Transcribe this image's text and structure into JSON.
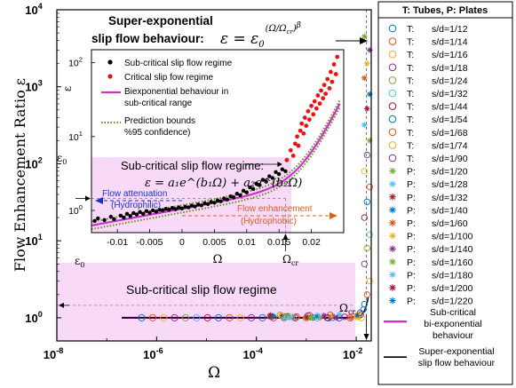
{
  "chart_data": [
    {
      "type": "scatter",
      "xlabel": "Ω",
      "ylabel": "Flow Enhancement Ratio ε",
      "xscale": "log",
      "yscale": "log",
      "xlim": [
        1e-08,
        0.02
      ],
      "ylim": [
        0.5,
        10000
      ],
      "xticks": [
        {
          "v": 1e-08,
          "base": "10",
          "exp": "-8"
        },
        {
          "v": 1e-06,
          "base": "10",
          "exp": "-6"
        },
        {
          "v": 0.0001,
          "base": "10",
          "exp": "-4"
        },
        {
          "v": 0.01,
          "base": "10",
          "exp": "-2"
        }
      ],
      "yticks": [
        {
          "v": 1,
          "base": "10",
          "exp": "0"
        },
        {
          "v": 10,
          "base": "10",
          "exp": "1"
        },
        {
          "v": 100,
          "base": "10",
          "exp": "2"
        },
        {
          "v": 1000,
          "base": "10",
          "exp": "3"
        },
        {
          "v": 10000,
          "base": "10",
          "exp": "4"
        }
      ],
      "region_label": "Sub-critical slip flow regime",
      "eps0_label": "ε",
      "eps0_sub": "0",
      "omega_cr_label": "Ω",
      "omega_cr_sub": "cr",
      "headline": {
        "line1": "Super-exponential",
        "line2": "slip flow behaviour:",
        "formula": "ε = ε",
        "formula_sub": "0",
        "formula_exp": "(Ω/Ω",
        "formula_exp_sub": "cr",
        "formula_exp_tail": ")",
        "formula_beta": "β"
      },
      "series": [
        {
          "name": "T: s/d=1/12",
          "marker": "o",
          "color": "#0072BD"
        },
        {
          "name": "T: s/d=1/14",
          "marker": "o",
          "color": "#D95319"
        },
        {
          "name": "T: s/d=1/16",
          "marker": "o",
          "color": "#EDB120"
        },
        {
          "name": "T: s/d=1/18",
          "marker": "o",
          "color": "#7E2F8E"
        },
        {
          "name": "T: s/d=1/24",
          "marker": "o",
          "color": "#77AC30"
        },
        {
          "name": "T: s/d=1/32",
          "marker": "o",
          "color": "#4DBEEE"
        },
        {
          "name": "T: s/d=1/44",
          "marker": "o",
          "color": "#A2142F"
        },
        {
          "name": "T: s/d=1/54",
          "marker": "o",
          "color": "#0072BD"
        },
        {
          "name": "T: s/d=1/68",
          "marker": "o",
          "color": "#D95319"
        },
        {
          "name": "T: s/d=1/74",
          "marker": "o",
          "color": "#EDB120"
        },
        {
          "name": "T: s/d=1/90",
          "marker": "o",
          "color": "#7E2F8E"
        },
        {
          "name": "P: s/d=1/20",
          "marker": "*",
          "color": "#77AC30"
        },
        {
          "name": "P: s/d=1/28",
          "marker": "*",
          "color": "#4DBEEE"
        },
        {
          "name": "P: s/d=1/32",
          "marker": "*",
          "color": "#A2142F"
        },
        {
          "name": "P: s/d=1/40",
          "marker": "*",
          "color": "#0072BD"
        },
        {
          "name": "P: s/d=1/60",
          "marker": "*",
          "color": "#D95319"
        },
        {
          "name": "P: s/d=1/100",
          "marker": "*",
          "color": "#EDB120"
        },
        {
          "name": "P: s/d=1/140",
          "marker": "*",
          "color": "#7E2F8E"
        },
        {
          "name": "P: s/d=1/160",
          "marker": "*",
          "color": "#77AC30"
        },
        {
          "name": "P: s/d=1/180",
          "marker": "*",
          "color": "#4DBEEE"
        },
        {
          "name": "P: s/d=1/200",
          "marker": "*",
          "color": "#A2142F"
        },
        {
          "name": "P: s/d=1/220",
          "marker": "*",
          "color": "#0072BD"
        }
      ],
      "lines": [
        {
          "name": "Sub-critical bi-exponential behaviour",
          "color": "#CC33CC"
        },
        {
          "name": "Super-exponential slip flow behaviour",
          "color": "#000000"
        }
      ],
      "legend": {
        "title": "T: Tubes, P: Plates",
        "placement": "outside-right"
      }
    },
    {
      "type": "scatter",
      "xlabel": "Ω",
      "ylabel": "ε",
      "yscale": "log",
      "xlim": [
        -0.014,
        0.025
      ],
      "ylim": [
        0.5,
        150
      ],
      "xtick_labels": [
        "-0.01",
        "-0.005",
        "0",
        "0.005",
        "0.01",
        "0.015",
        "0.02"
      ],
      "xtick_values": [
        -0.01,
        -0.005,
        0,
        0.005,
        0.01,
        0.015,
        0.02
      ],
      "yticks": [
        {
          "v": 1,
          "base": "10",
          "exp": "0"
        },
        {
          "v": 10,
          "base": "10",
          "exp": "1"
        },
        {
          "v": 100,
          "base": "10",
          "exp": "2"
        }
      ],
      "legend": [
        {
          "label": "Sub-critical slip flow regime",
          "color": "#000000",
          "kind": "dot"
        },
        {
          "label": "Critical slip fow regime",
          "color": "#EE1111",
          "kind": "dot"
        },
        {
          "label": "Biexponential behaviour in",
          "label2": "sub-critical range",
          "color": "#CC33CC",
          "kind": "line"
        },
        {
          "label": "Prediction bounds",
          "label2": "%95 confidence)",
          "color": "#6B8E23",
          "kind": "dotted"
        }
      ],
      "regime_title": "Sub-critical slip flow regime:",
      "fit_formula": "ε = a₁e^(b₁Ω) + a₂e^(b₂Ω)",
      "attenuation_label": "Flow attenuation",
      "attenuation_sub": "(Hydrophilic)",
      "enhancement_label": "Flow enhancement",
      "enhancement_sub": "(Hydrophobic)",
      "eps0_label": "ε",
      "eps0_sub": "0",
      "omega_cr_label": "Ω",
      "omega_cr_sub": "cr",
      "omega_cr_value": 0.016,
      "eps0_value": 1.45,
      "subcritical_points": [
        [
          -0.0135,
          0.72
        ],
        [
          -0.013,
          0.78
        ],
        [
          -0.012,
          0.74
        ],
        [
          -0.011,
          0.82
        ],
        [
          -0.0105,
          0.76
        ],
        [
          -0.0095,
          0.85
        ],
        [
          -0.009,
          0.8
        ],
        [
          -0.0085,
          0.9
        ],
        [
          -0.008,
          0.84
        ],
        [
          -0.0075,
          0.92
        ],
        [
          -0.007,
          0.88
        ],
        [
          -0.0065,
          0.95
        ],
        [
          -0.006,
          0.9
        ],
        [
          -0.0055,
          0.98
        ],
        [
          -0.005,
          0.93
        ],
        [
          -0.0045,
          1.0
        ],
        [
          -0.004,
          0.96
        ],
        [
          -0.0035,
          1.02
        ],
        [
          -0.003,
          1.0
        ],
        [
          -0.0025,
          1.05
        ],
        [
          -0.002,
          1.02
        ],
        [
          -0.0015,
          1.08
        ],
        [
          -0.001,
          1.04
        ],
        [
          -0.0005,
          1.1
        ],
        [
          0,
          1.06
        ],
        [
          0.0005,
          1.12
        ],
        [
          0.001,
          1.1
        ],
        [
          0.0015,
          1.16
        ],
        [
          0.002,
          1.13
        ],
        [
          0.0025,
          1.2
        ],
        [
          0.003,
          1.17
        ],
        [
          0.0035,
          1.25
        ],
        [
          0.004,
          1.22
        ],
        [
          0.0045,
          1.3
        ],
        [
          0.005,
          1.27
        ],
        [
          0.0055,
          1.36
        ],
        [
          0.006,
          1.33
        ],
        [
          0.0065,
          1.45
        ],
        [
          0.007,
          1.4
        ],
        [
          0.0075,
          1.55
        ],
        [
          0.008,
          1.5
        ],
        [
          0.0085,
          1.68
        ],
        [
          0.009,
          1.6
        ],
        [
          0.0095,
          1.85
        ],
        [
          0.01,
          1.75
        ],
        [
          0.0105,
          2.05
        ],
        [
          0.011,
          1.95
        ],
        [
          0.0115,
          2.3
        ],
        [
          0.012,
          2.2
        ],
        [
          0.0125,
          2.6
        ],
        [
          0.013,
          2.45
        ],
        [
          0.0135,
          2.9
        ],
        [
          0.014,
          2.75
        ],
        [
          0.0145,
          3.3
        ],
        [
          0.015,
          3.1
        ],
        [
          0.0155,
          3.6
        ],
        [
          0.016,
          3.4
        ]
      ],
      "critical_points": [
        [
          0.0162,
          4.8
        ],
        [
          0.0168,
          6.5
        ],
        [
          0.0172,
          5.5
        ],
        [
          0.0175,
          8.0
        ],
        [
          0.0178,
          10.0
        ],
        [
          0.018,
          7.5
        ],
        [
          0.0183,
          12.0
        ],
        [
          0.0185,
          15.0
        ],
        [
          0.0188,
          11.0
        ],
        [
          0.019,
          18.0
        ],
        [
          0.0192,
          14.0
        ],
        [
          0.0195,
          22.0
        ],
        [
          0.0197,
          17.0
        ],
        [
          0.02,
          26.0
        ],
        [
          0.0203,
          20.0
        ],
        [
          0.0205,
          30.0
        ],
        [
          0.0208,
          24.0
        ],
        [
          0.021,
          36.0
        ],
        [
          0.0213,
          28.0
        ],
        [
          0.0215,
          42.0
        ],
        [
          0.0218,
          33.0
        ],
        [
          0.022,
          50.0
        ],
        [
          0.0222,
          38.0
        ],
        [
          0.0225,
          60.0
        ],
        [
          0.0228,
          45.0
        ],
        [
          0.023,
          75.0
        ],
        [
          0.0232,
          55.0
        ],
        [
          0.0235,
          95.0
        ],
        [
          0.0238,
          70.0
        ],
        [
          0.024,
          120.0
        ]
      ]
    }
  ]
}
